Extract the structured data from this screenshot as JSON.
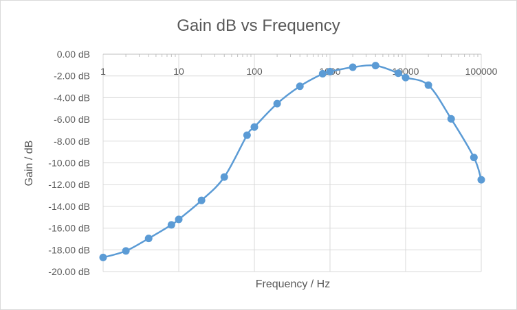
{
  "chart_data": {
    "type": "scatter",
    "title": "Gain dB vs Frequency",
    "xlabel": "Frequency / Hz",
    "ylabel": "Gain / dB",
    "xscale": "log",
    "xlim": [
      1,
      100000
    ],
    "ylim": [
      -20,
      0
    ],
    "x_tick_labels": [
      "1",
      "10",
      "100",
      "1000",
      "10000",
      "100000"
    ],
    "y_tick_labels": [
      "0.00 dB",
      "-2.00 dB",
      "-4.00 dB",
      "-6.00 dB",
      "-8.00 dB",
      "-10.00 dB",
      "-12.00 dB",
      "-14.00 dB",
      "-16.00 dB",
      "-18.00 dB",
      "-20.00 dB"
    ],
    "grid": true,
    "legend": "none",
    "line": "smoothed with markers",
    "colors": {
      "series": "#5b9bd5",
      "grid": "#d9d9d9",
      "text": "#595959"
    },
    "x": [
      1,
      2,
      4,
      8,
      10,
      20,
      40,
      80,
      100,
      200,
      400,
      800,
      1000,
      2000,
      4000,
      8000,
      10000,
      20000,
      40000,
      80000,
      100000
    ],
    "y": [
      -18.7,
      -18.1,
      -16.95,
      -15.7,
      -15.2,
      -13.45,
      -11.3,
      -7.45,
      -6.7,
      -4.55,
      -2.95,
      -1.8,
      -1.6,
      -1.2,
      -1.05,
      -1.75,
      -2.15,
      -2.85,
      -5.95,
      -9.5,
      -11.55
    ]
  }
}
